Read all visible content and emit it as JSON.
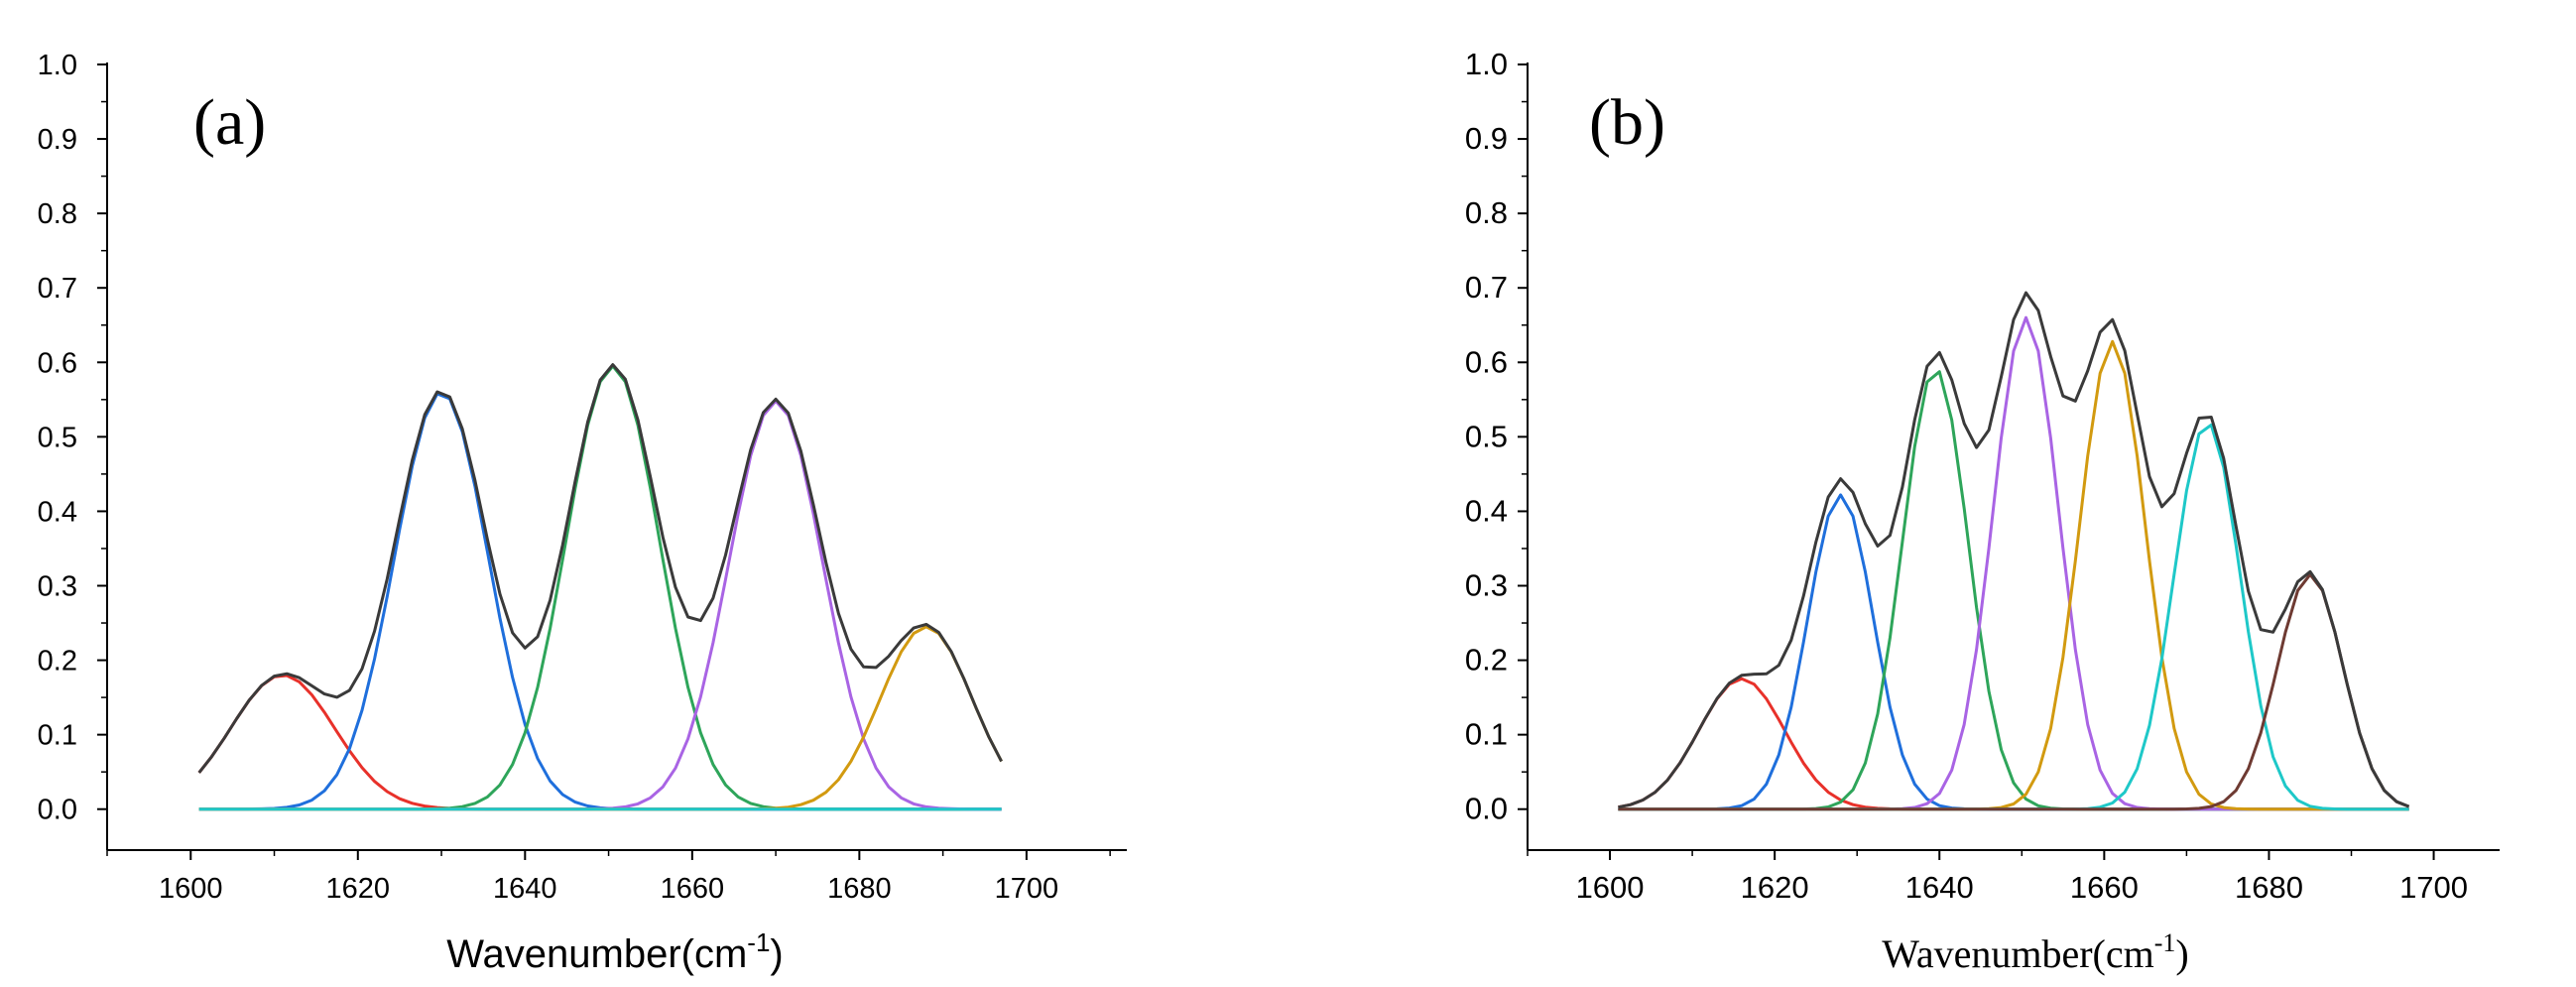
{
  "chart_data": [
    {
      "id": "a",
      "type": "line",
      "panel_label": "(a)",
      "xlabel_main": "Wavenumber(cm",
      "xlabel_sup": "-1",
      "xlabel_close": ")",
      "ylabel": "",
      "xlim": [
        1590,
        1712
      ],
      "ylim": [
        -0.055,
        1.0
      ],
      "x_ticks": [
        1600,
        1620,
        1640,
        1660,
        1680,
        1700
      ],
      "x_tick_labels": [
        "1600",
        "1620",
        "1640",
        "1660",
        "1680",
        "1700"
      ],
      "y_ticks": [
        0.0,
        0.1,
        0.2,
        0.3,
        0.4,
        0.5,
        0.6,
        0.7,
        0.8,
        0.9,
        1.0
      ],
      "y_tick_labels": [
        "0.0",
        "0.1",
        "0.2",
        "0.3",
        "0.4",
        "0.5",
        "0.6",
        "0.7",
        "0.8",
        "0.9",
        "1.0"
      ],
      "x_range": [
        1601,
        1697
      ],
      "components": [
        {
          "name": "red",
          "color": "#e8312a",
          "amplitude": 0.18,
          "center": 1611,
          "sigma": 6.2
        },
        {
          "name": "blue",
          "color": "#1f6fdc",
          "amplitude": 0.56,
          "center": 1630,
          "sigma": 5.6
        },
        {
          "name": "green",
          "color": "#2ea55a",
          "amplitude": 0.595,
          "center": 1650.5,
          "sigma": 5.6
        },
        {
          "name": "purple",
          "color": "#a964e4",
          "amplitude": 0.548,
          "center": 1670,
          "sigma": 5.6
        },
        {
          "name": "orange",
          "color": "#d29a10",
          "amplitude": 0.245,
          "center": 1688,
          "sigma": 5.5
        },
        {
          "name": "cyan",
          "color": "#1ec8c8",
          "amplitude": 0.0,
          "center": 1650,
          "sigma": 5.0
        }
      ],
      "envelope": {
        "name": "sum",
        "color": "#3a3a3a"
      }
    },
    {
      "id": "b",
      "type": "line",
      "panel_label": "(b)",
      "xlabel_main": "Wavenumber(cm",
      "xlabel_sup": "-1",
      "xlabel_close": ")",
      "ylabel": "",
      "xlim": [
        1590,
        1708
      ],
      "ylim": [
        -0.055,
        1.0
      ],
      "x_ticks": [
        1600,
        1620,
        1640,
        1660,
        1680,
        1700
      ],
      "x_tick_labels": [
        "1600",
        "1620",
        "1640",
        "1660",
        "1680",
        "1700"
      ],
      "y_ticks": [
        0.0,
        0.1,
        0.2,
        0.3,
        0.4,
        0.5,
        0.6,
        0.7,
        0.8,
        0.9,
        1.0
      ],
      "y_tick_labels": [
        "0.0",
        "0.1",
        "0.2",
        "0.3",
        "0.4",
        "0.5",
        "0.6",
        "0.7",
        "0.8",
        "0.9",
        "1.0"
      ],
      "x_range": [
        1601,
        1697
      ],
      "components": [
        {
          "name": "red",
          "color": "#e8312a",
          "amplitude": 0.175,
          "center": 1616,
          "sigma": 5.2
        },
        {
          "name": "blue",
          "color": "#1f6fdc",
          "amplitude": 0.422,
          "center": 1628,
          "sigma": 4.0
        },
        {
          "name": "green",
          "color": "#2ea55a",
          "amplitude": 0.592,
          "center": 1639.5,
          "sigma": 4.0
        },
        {
          "name": "purple",
          "color": "#a964e4",
          "amplitude": 0.66,
          "center": 1650.5,
          "sigma": 4.0
        },
        {
          "name": "orange",
          "color": "#d29a10",
          "amplitude": 0.628,
          "center": 1661,
          "sigma": 4.0
        },
        {
          "name": "cyan",
          "color": "#1ec8c8",
          "amplitude": 0.52,
          "center": 1672.5,
          "sigma": 4.0
        },
        {
          "name": "brown",
          "color": "#6e3a32",
          "amplitude": 0.315,
          "center": 1685,
          "sigma": 4.0
        }
      ],
      "envelope": {
        "name": "sum",
        "color": "#3a3a3a"
      }
    }
  ]
}
